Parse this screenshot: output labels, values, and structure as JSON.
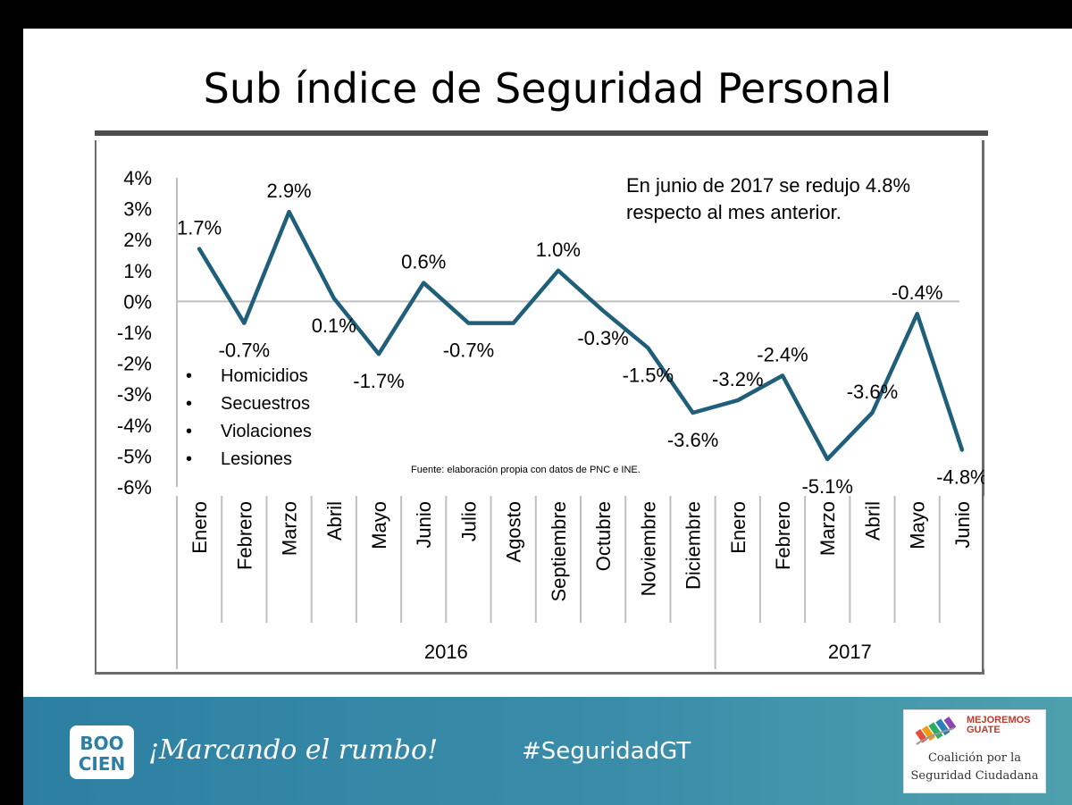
{
  "slide": {
    "title": "Sub índice de Seguridad Personal",
    "note_line1": "En junio de 2017 se redujo 4.8%",
    "note_line2": "respecto al mes anterior.",
    "bullets": [
      "Homicidios",
      "Secuestros",
      "Violaciones",
      "Lesiones"
    ],
    "source": "Fuente: elaboración propia con datos de PNC e INE."
  },
  "footer": {
    "logo_text_top": "BOO",
    "logo_text_bottom": "CIEN",
    "slogan": "¡Marcando el rumbo!",
    "hashtag": "#SeguridadGT",
    "coalition_brand_line1": "MEJOREMOS",
    "coalition_brand_line2": "GUATE",
    "coalition_line1": "Coalición por la",
    "coalition_line2": "Seguridad Ciudadana"
  },
  "colors": {
    "line": "#1f5f7a",
    "footer": "#2c7fa2"
  },
  "chart_data": {
    "type": "line",
    "categories": [
      "Enero",
      "Febrero",
      "Marzo",
      "Abril",
      "Mayo",
      "Junio",
      "Julio",
      "Agosto",
      "Septiembre",
      "Octubre",
      "Noviembre",
      "Diciembre",
      "Enero",
      "Febrero",
      "Marzo",
      "Abril",
      "Mayo",
      "Junio"
    ],
    "groups": [
      {
        "label": "2016",
        "start": 0,
        "end": 11
      },
      {
        "label": "2017",
        "start": 12,
        "end": 17
      }
    ],
    "values": [
      1.7,
      -0.7,
      2.9,
      0.1,
      -1.7,
      0.6,
      -0.7,
      -0.7,
      1.0,
      -0.3,
      -1.5,
      -3.6,
      -3.2,
      -2.4,
      -5.1,
      -3.6,
      -0.4,
      -4.8
    ],
    "data_labels": [
      "1.7%",
      "-0.7%",
      "2.9%",
      "0.1%",
      "-1.7%",
      "0.6%",
      "-0.7%",
      "",
      "1.0%",
      "-0.3%",
      "-1.5%",
      "-3.6%",
      "-3.2%",
      "-2.4%",
      "-5.1%",
      "-3.6%",
      "-0.4%",
      "-4.8%"
    ],
    "yticks": [
      "4%",
      "3%",
      "2%",
      "1%",
      "0%",
      "-1%",
      "-2%",
      "-3%",
      "-4%",
      "-5%",
      "-6%"
    ],
    "ylim": [
      -6,
      4
    ],
    "grid": false
  }
}
